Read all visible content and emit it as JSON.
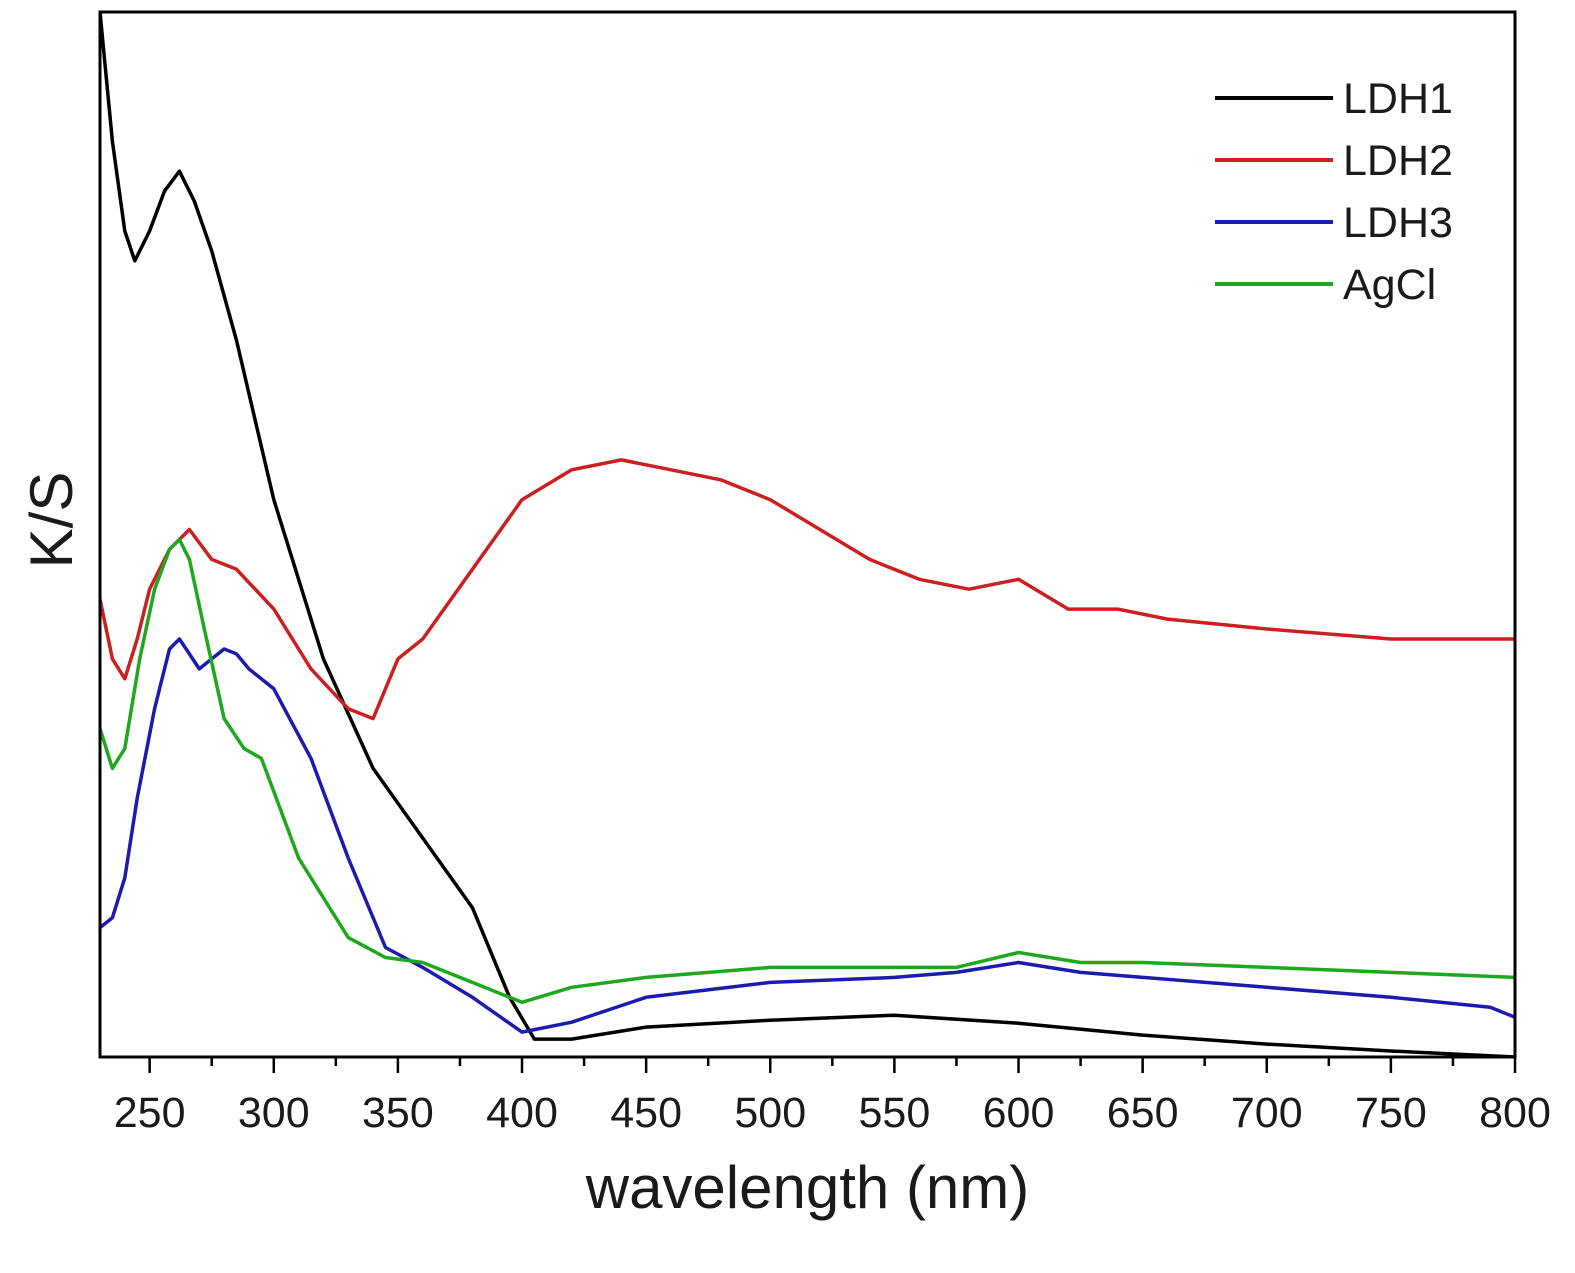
{
  "chart_data": {
    "type": "line",
    "title": "",
    "xlabel": "wavelength (nm)",
    "ylabel": "K/S",
    "xlim": [
      230,
      800
    ],
    "ylim": [
      0,
      10.5
    ],
    "xticks": [
      250,
      300,
      350,
      400,
      450,
      500,
      550,
      600,
      650,
      700,
      750,
      800
    ],
    "yticks_shown": false,
    "grid": false,
    "legend_position": "top-right",
    "series": [
      {
        "name": "LDH1",
        "color": "#000000",
        "x": [
          230,
          235,
          240,
          244,
          250,
          256,
          262,
          268,
          275,
          285,
          300,
          320,
          340,
          360,
          380,
          395,
          405,
          420,
          450,
          500,
          550,
          600,
          650,
          700,
          750,
          800
        ],
        "y": [
          10.5,
          9.2,
          8.3,
          8.0,
          8.3,
          8.7,
          8.9,
          8.6,
          8.1,
          7.2,
          5.6,
          4.0,
          2.9,
          2.2,
          1.5,
          0.6,
          0.18,
          0.18,
          0.3,
          0.37,
          0.42,
          0.34,
          0.22,
          0.13,
          0.06,
          0.0
        ]
      },
      {
        "name": "LDH2",
        "color": "#cc1f1f",
        "x": [
          230,
          235,
          240,
          245,
          250,
          258,
          266,
          275,
          285,
          300,
          315,
          330,
          340,
          350,
          360,
          380,
          400,
          420,
          440,
          460,
          480,
          500,
          520,
          540,
          560,
          580,
          600,
          620,
          640,
          660,
          700,
          750,
          800
        ],
        "y": [
          4.6,
          4.0,
          3.8,
          4.2,
          4.7,
          5.1,
          5.3,
          5.0,
          4.9,
          4.5,
          3.9,
          3.5,
          3.4,
          4.0,
          4.2,
          4.9,
          5.6,
          5.9,
          6.0,
          5.9,
          5.8,
          5.6,
          5.3,
          5.0,
          4.8,
          4.7,
          4.8,
          4.5,
          4.5,
          4.4,
          4.3,
          4.2,
          4.2
        ]
      },
      {
        "name": "LDH3",
        "color": "#1b1bb0",
        "x": [
          230,
          235,
          240,
          245,
          252,
          258,
          262,
          266,
          270,
          275,
          280,
          285,
          290,
          300,
          315,
          330,
          345,
          360,
          380,
          400,
          420,
          450,
          500,
          550,
          575,
          600,
          625,
          650,
          700,
          750,
          790,
          800
        ],
        "y": [
          1.3,
          1.4,
          1.8,
          2.6,
          3.5,
          4.1,
          4.2,
          4.05,
          3.9,
          4.0,
          4.1,
          4.05,
          3.9,
          3.7,
          3.0,
          2.0,
          1.1,
          0.9,
          0.6,
          0.25,
          0.35,
          0.6,
          0.75,
          0.8,
          0.85,
          0.95,
          0.85,
          0.8,
          0.7,
          0.6,
          0.5,
          0.4
        ]
      },
      {
        "name": "AgCl",
        "color": "#1ea81e",
        "x": [
          230,
          235,
          240,
          246,
          252,
          258,
          262,
          266,
          272,
          280,
          288,
          295,
          310,
          330,
          345,
          360,
          380,
          400,
          420,
          450,
          500,
          550,
          575,
          600,
          625,
          650,
          700,
          750,
          800
        ],
        "y": [
          3.3,
          2.9,
          3.1,
          4.0,
          4.7,
          5.1,
          5.2,
          5.0,
          4.3,
          3.4,
          3.1,
          3.0,
          2.0,
          1.2,
          1.0,
          0.95,
          0.75,
          0.55,
          0.7,
          0.8,
          0.9,
          0.9,
          0.9,
          1.05,
          0.95,
          0.95,
          0.9,
          0.85,
          0.8
        ]
      }
    ]
  }
}
